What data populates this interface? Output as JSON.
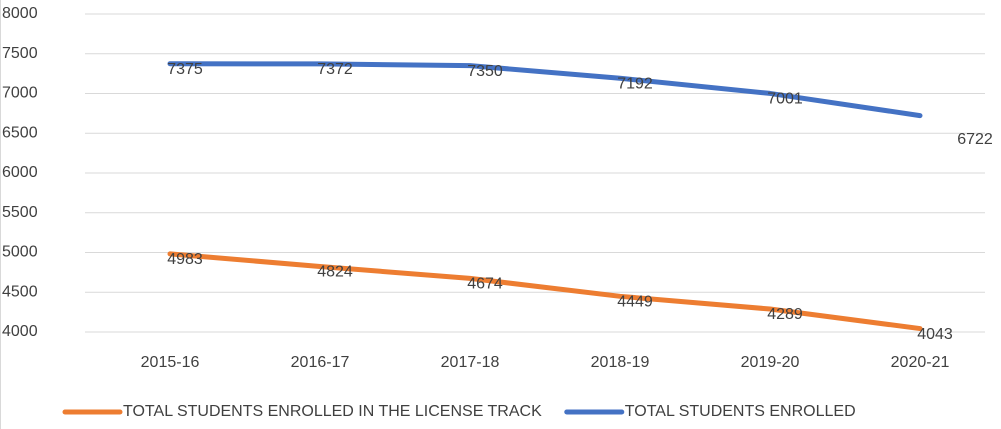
{
  "chart_data": {
    "type": "line",
    "categories": [
      "2015-16",
      "2016-17",
      "2017-18",
      "2018-19",
      "2019-20",
      "2020-21"
    ],
    "series": [
      {
        "name": "TOTAL STUDENTS ENROLLED IN THE LICENSE TRACK",
        "color": "#ed7d31",
        "values": [
          4983,
          4824,
          4674,
          4449,
          4289,
          4043
        ]
      },
      {
        "name": "TOTAL STUDENTS ENROLLED",
        "color": "#4472c4",
        "values": [
          7375,
          7372,
          7350,
          7192,
          7001,
          6722
        ]
      }
    ],
    "ylim": [
      4000,
      8000
    ],
    "yticks": [
      4000,
      4500,
      5000,
      5500,
      6000,
      6500,
      7000,
      7500,
      8000
    ],
    "grid": true,
    "legend": "bottom"
  }
}
